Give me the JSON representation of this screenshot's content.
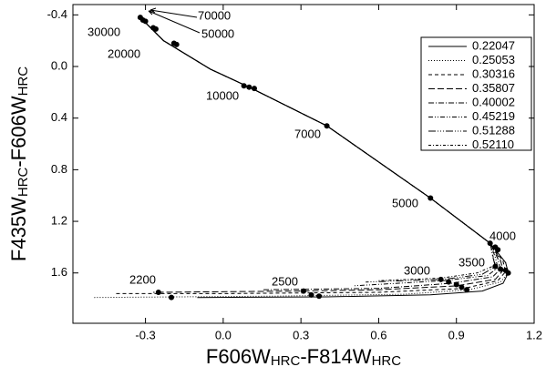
{
  "chart_data": {
    "type": "line",
    "xlabel": [
      "F606W",
      "HRC",
      "-F814W",
      "HRC"
    ],
    "ylabel": [
      "F435W",
      "HRC",
      "-F606W",
      "HRC"
    ],
    "xlim": [
      -0.58,
      1.2
    ],
    "ylim": [
      -0.48,
      1.99
    ],
    "y_inverted": true,
    "xticks": [
      -0.3,
      {
        "value": 0,
        "label": "0.0"
      },
      0.3,
      0.6,
      0.9,
      1.2
    ],
    "yticks": [
      -0.4,
      {
        "value": 0,
        "label": "0.0"
      },
      0.4,
      0.8,
      1.2,
      1.6
    ],
    "legend": "upper right",
    "series": [
      {
        "name": "0.22047",
        "color": "#000",
        "dash": "none",
        "x": [
          -0.32,
          -0.23,
          -0.05,
          0.1,
          0.4,
          0.8,
          1.03,
          1.09,
          1.1,
          1.08,
          1.0,
          0.8,
          0.4,
          -0.1
        ],
        "y": [
          -0.38,
          -0.2,
          0.02,
          0.16,
          0.46,
          1.02,
          1.37,
          1.52,
          1.6,
          1.68,
          1.74,
          1.77,
          1.785,
          1.79
        ]
      },
      {
        "name": "0.25053",
        "color": "#000",
        "dash": "1,2",
        "x": [
          -0.32,
          -0.23,
          -0.05,
          0.1,
          0.4,
          0.8,
          1.03,
          1.09,
          1.1,
          1.07,
          0.95,
          0.7,
          0.2,
          -0.5
        ],
        "y": [
          -0.38,
          -0.2,
          0.02,
          0.16,
          0.46,
          1.02,
          1.37,
          1.52,
          1.6,
          1.67,
          1.73,
          1.765,
          1.78,
          1.79
        ]
      },
      {
        "name": "0.30316",
        "color": "#000",
        "dash": "4,3",
        "x": [
          -0.32,
          -0.23,
          -0.05,
          0.1,
          0.4,
          0.8,
          1.03,
          1.08,
          1.09,
          1.06,
          0.93,
          0.6,
          0.0,
          -0.42
        ],
        "y": [
          -0.38,
          -0.2,
          0.02,
          0.16,
          0.46,
          1.02,
          1.37,
          1.51,
          1.59,
          1.66,
          1.72,
          1.75,
          1.76,
          1.76
        ]
      },
      {
        "name": "0.35807",
        "color": "#000",
        "dash": "7,3",
        "x": [
          -0.32,
          -0.23,
          -0.05,
          0.1,
          0.4,
          0.8,
          1.03,
          1.07,
          1.08,
          1.05,
          0.9,
          0.6,
          0.3,
          -0.27
        ],
        "y": [
          -0.38,
          -0.2,
          0.02,
          0.16,
          0.46,
          1.02,
          1.37,
          1.5,
          1.58,
          1.65,
          1.7,
          1.73,
          1.74,
          1.75
        ]
      },
      {
        "name": "0.40002",
        "color": "#000",
        "dash": "6,2,1,2",
        "x": [
          -0.32,
          -0.23,
          -0.05,
          0.1,
          0.4,
          0.8,
          1.03,
          1.06,
          1.07,
          1.04,
          0.88,
          0.6,
          0.15
        ],
        "y": [
          -0.38,
          -0.2,
          0.02,
          0.16,
          0.46,
          1.02,
          1.37,
          1.49,
          1.57,
          1.63,
          1.68,
          1.72,
          1.73
        ]
      },
      {
        "name": "0.45219",
        "color": "#000",
        "dash": "5,2,1,2,1,2",
        "x": [
          -0.32,
          -0.23,
          -0.05,
          0.1,
          0.4,
          0.8,
          1.03,
          1.05,
          1.06,
          1.02,
          0.85,
          0.5
        ],
        "y": [
          -0.38,
          -0.2,
          0.02,
          0.16,
          0.46,
          1.02,
          1.37,
          1.48,
          1.56,
          1.62,
          1.66,
          1.7
        ]
      },
      {
        "name": "0.51288",
        "color": "#000",
        "dash": "8,2,1,2,1,2,1,2",
        "x": [
          -0.32,
          -0.23,
          -0.05,
          0.1,
          0.4,
          0.8,
          1.03,
          1.04,
          1.05,
          1.0,
          0.85,
          0.55
        ],
        "y": [
          -0.38,
          -0.2,
          0.02,
          0.16,
          0.46,
          1.02,
          1.37,
          1.47,
          1.55,
          1.61,
          1.65,
          1.67
        ]
      },
      {
        "name": "0.52110",
        "color": "#000",
        "dash": "3,2,1,2",
        "x": [
          -0.32,
          -0.23,
          -0.05,
          0.1,
          0.4,
          0.8,
          1.03,
          1.04,
          1.05,
          0.98,
          0.84,
          0.6
        ],
        "y": [
          -0.38,
          -0.2,
          0.02,
          0.16,
          0.46,
          1.02,
          1.37,
          1.46,
          1.54,
          1.6,
          1.64,
          1.66
        ]
      }
    ],
    "points": {
      "x": [
        -0.32,
        -0.31,
        -0.3,
        -0.27,
        -0.26,
        -0.19,
        -0.18,
        0.08,
        0.1,
        0.12,
        0.4,
        0.8,
        1.03,
        1.05,
        1.06,
        1.05,
        1.07,
        1.09,
        1.1,
        0.84,
        0.87,
        0.9,
        0.92,
        0.94,
        0.31,
        0.34,
        0.37,
        -0.25,
        -0.2
      ],
      "y": [
        -0.38,
        -0.36,
        -0.35,
        -0.3,
        -0.29,
        -0.18,
        -0.17,
        0.15,
        0.16,
        0.17,
        0.46,
        1.02,
        1.37,
        1.4,
        1.42,
        1.55,
        1.57,
        1.58,
        1.6,
        1.65,
        1.67,
        1.69,
        1.71,
        1.73,
        1.74,
        1.77,
        1.78,
        1.75,
        1.79
      ]
    },
    "annotations": [
      "70000",
      "50000",
      "30000",
      "20000",
      "10000",
      "7000",
      "5000",
      "4000",
      "3500",
      "3000",
      "2500",
      "2200"
    ]
  }
}
